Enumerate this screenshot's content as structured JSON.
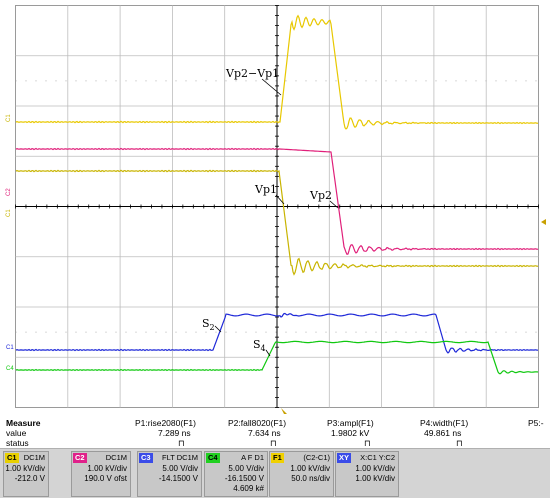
{
  "annotations": {
    "vp2_minus_vp1": "Vp2−Vp1",
    "vp1": "Vp1",
    "vp2": "Vp2",
    "s2": "S",
    "s2_sub": "2",
    "s4": "S",
    "s4_sub": "4"
  },
  "channel_markers": [
    "C1",
    "C2",
    "C1",
    "C1",
    "C4"
  ],
  "measure": {
    "header": "Measure",
    "row_labels": [
      "value",
      "status"
    ],
    "columns": [
      {
        "name": "P1:rise2080(F1)",
        "value": "7.289 ns",
        "status": "⊓"
      },
      {
        "name": "P2:fall8020(F1)",
        "value": "7.634 ns",
        "status": "⊓"
      },
      {
        "name": "P3:ampl(F1)",
        "value": "1.9802 kV",
        "status": "⊓"
      },
      {
        "name": "P4:width(F1)",
        "value": "49.861 ns",
        "status": "⊓"
      },
      {
        "name": "P5:-",
        "value": "",
        "status": ""
      }
    ]
  },
  "channels": [
    {
      "tag": "C1",
      "title": "DC1M",
      "l1": "1.00 kV/div",
      "l2": "-212.0 V",
      "l3": "",
      "color": "#e8d000"
    },
    {
      "tag": "C2",
      "title": "DC1M",
      "l1": "1.00 kV/div",
      "l2": "190.0 V ofst",
      "l3": "",
      "color": "#e0208a"
    },
    {
      "tag": "C3",
      "title": "FLT DC1M",
      "l1": "5.00 V/div",
      "l2": "-14.1500 V",
      "l3": "",
      "color": "#3a4ce8"
    },
    {
      "tag": "C4",
      "title": "A F D1",
      "l1": "5.00 V/div",
      "l2": "-16.1500 V",
      "l3": "4.609 k#",
      "color": "#20d020"
    },
    {
      "tag": "F1",
      "title": "(C2-C1)",
      "l1": "1.00 kV/div",
      "l2": "50.0 ns/div",
      "l3": "",
      "color": "#f0d000"
    },
    {
      "tag": "XY",
      "title": "X:C1 Y:C2",
      "l1": "1.00 kV/div",
      "l2": "1.00 kV/div",
      "l3": "",
      "color": "#3a4ce8"
    }
  ],
  "colors": {
    "c1": "#c8b400",
    "c2": "#e0207a",
    "c3": "#1e28d8",
    "c4": "#10c810",
    "f1": "#e8c800",
    "grid": "#b4b4b4",
    "axis": "#000000"
  }
}
